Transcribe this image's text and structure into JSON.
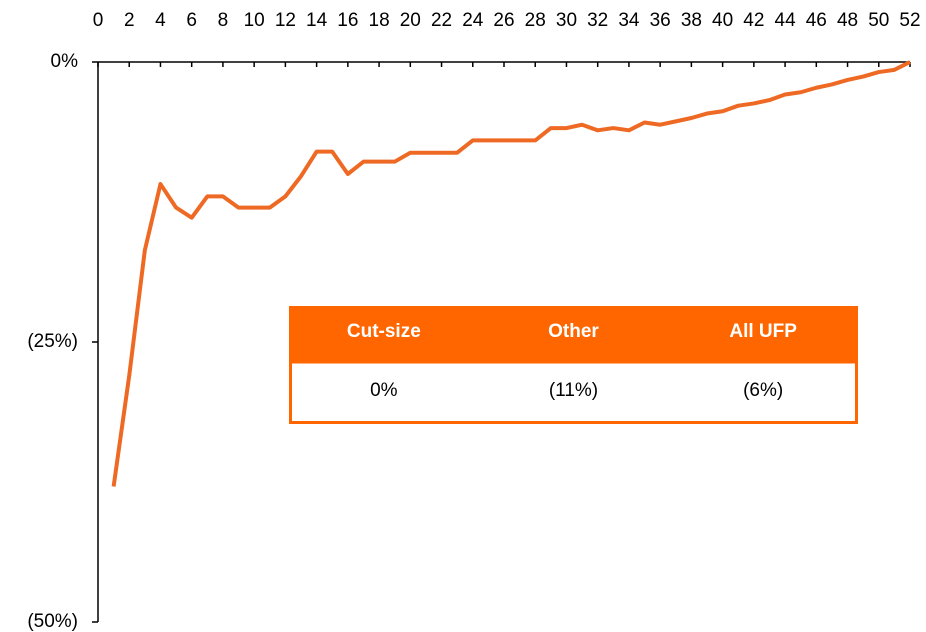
{
  "chart_data": {
    "type": "line",
    "x": [
      1,
      2,
      3,
      4,
      5,
      6,
      7,
      8,
      9,
      10,
      11,
      12,
      13,
      14,
      15,
      16,
      17,
      18,
      19,
      20,
      21,
      22,
      23,
      24,
      25,
      26,
      27,
      28,
      29,
      30,
      31,
      32,
      33,
      34,
      35,
      36,
      37,
      38,
      39,
      40,
      41,
      42,
      43,
      44,
      45,
      46,
      47,
      48,
      49,
      50,
      51,
      52
    ],
    "series": [
      {
        "color": "#ee6a24",
        "values": [
          -37.9,
          -28,
          -16.8,
          -10.9,
          -13,
          -13.9,
          -12,
          -12,
          -13,
          -13,
          -13,
          -12,
          -10.2,
          -8,
          -8,
          -10,
          -8.9,
          -8.9,
          -8.9,
          -8.1,
          -8.1,
          -8.1,
          -8.1,
          -7,
          -7,
          -7,
          -7,
          -7,
          -5.9,
          -5.9,
          -5.6,
          -6.1,
          -5.9,
          -6.1,
          -5.4,
          -5.6,
          -5.3,
          -5,
          -4.6,
          -4.4,
          -3.9,
          -3.7,
          -3.4,
          -2.9,
          -2.7,
          -2.3,
          -2,
          -1.6,
          -1.3,
          -0.9,
          -0.7,
          0
        ]
      }
    ],
    "xlim": [
      0,
      52
    ],
    "xticks": [
      0,
      2,
      4,
      6,
      8,
      10,
      12,
      14,
      16,
      18,
      20,
      22,
      24,
      26,
      28,
      30,
      32,
      34,
      36,
      38,
      40,
      42,
      44,
      46,
      48,
      50,
      52
    ],
    "ylim": [
      -50,
      0
    ],
    "yticks": [
      {
        "value": 0,
        "label": "0%"
      },
      {
        "value": -25,
        "label": "(25%)"
      },
      {
        "value": -50,
        "label": "(50%)"
      }
    ],
    "table": {
      "columns": [
        "Cut-size",
        "Other",
        "All UFP"
      ],
      "rows": [
        [
          "0%",
          "(11%)",
          "(6%)"
        ]
      ],
      "color": "#ff6600"
    }
  }
}
